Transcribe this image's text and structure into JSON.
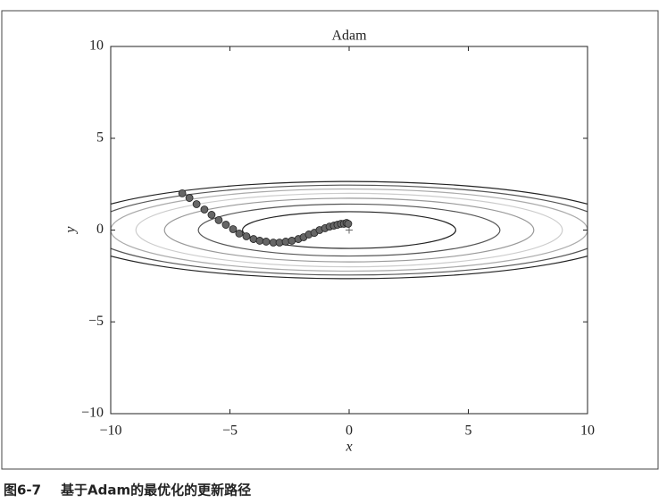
{
  "chart_data": {
    "type": "scatter",
    "title": "Adam",
    "x_label": "x",
    "y_label": "y",
    "xlim": [
      -10,
      10
    ],
    "ylim": [
      -10,
      10
    ],
    "xticks": [
      {
        "value": -10,
        "label": "−10"
      },
      {
        "value": -5,
        "label": "−5"
      },
      0,
      5,
      10
    ],
    "yticks": [
      {
        "value": -10,
        "label": "−10"
      },
      {
        "value": -5,
        "label": "−5"
      },
      0,
      5,
      10
    ],
    "grid": false,
    "x": [
      -7.0,
      -6.7,
      -6.4,
      -6.07,
      -5.77,
      -5.47,
      -5.17,
      -4.87,
      -4.61,
      -4.31,
      -4.01,
      -3.75,
      -3.48,
      -3.18,
      -2.92,
      -2.66,
      -2.4,
      -2.13,
      -1.91,
      -1.69,
      -1.46,
      -1.24,
      -1.01,
      -0.82,
      -0.64,
      -0.49,
      -0.34,
      -0.22,
      -0.11,
      -0.04
    ],
    "y": [
      2.0,
      1.75,
      1.41,
      1.12,
      0.83,
      0.54,
      0.29,
      0.05,
      -0.19,
      -0.34,
      -0.49,
      -0.58,
      -0.63,
      -0.68,
      -0.68,
      -0.63,
      -0.58,
      -0.49,
      -0.39,
      -0.24,
      -0.15,
      0.0,
      0.1,
      0.19,
      0.24,
      0.29,
      0.34,
      0.34,
      0.39,
      0.34
    ],
    "color": "#666666",
    "contour_levels": [
      1,
      2,
      3,
      4,
      5,
      6,
      7
    ],
    "contour_colors": [
      "#222222",
      "#555555",
      "#999999",
      "#cccccc",
      "#aaaaaa",
      "#555555",
      "#222222"
    ],
    "minimum": {
      "x": 0,
      "y": 0
    }
  },
  "caption": {
    "label": "图6-7",
    "text": "基于Adam的最优化的更新路径"
  }
}
